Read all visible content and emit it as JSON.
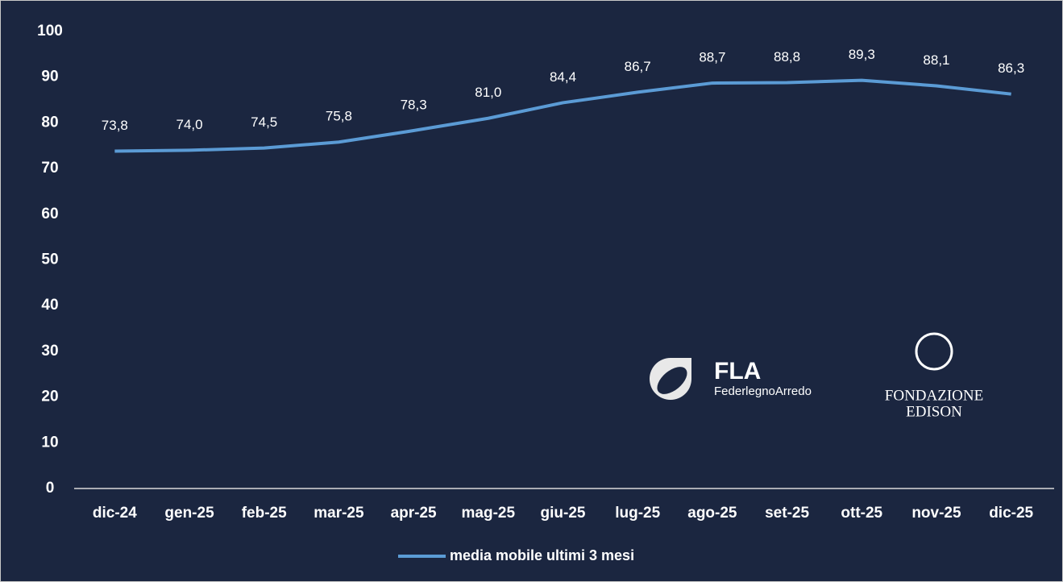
{
  "chart_data": {
    "type": "line",
    "categories": [
      "dic-24",
      "gen-25",
      "feb-25",
      "mar-25",
      "apr-25",
      "mag-25",
      "giu-25",
      "lug-25",
      "ago-25",
      "set-25",
      "ott-25",
      "nov-25",
      "dic-25"
    ],
    "series": [
      {
        "name": "media mobile ultimi 3 mesi",
        "color": "#5b9bd5",
        "values": [
          73.8,
          74.0,
          74.5,
          75.8,
          78.3,
          81.0,
          84.4,
          86.7,
          88.7,
          88.8,
          89.3,
          88.1,
          86.3
        ],
        "value_labels": [
          "73,8",
          "74,0",
          "74,5",
          "75,8",
          "78,3",
          "81,0",
          "84,4",
          "86,7",
          "88,7",
          "88,8",
          "89,3",
          "88,1",
          "86,3"
        ]
      }
    ],
    "ylim": [
      0,
      100
    ],
    "yticks": [
      0,
      10,
      20,
      30,
      40,
      50,
      60,
      70,
      80,
      90,
      100
    ],
    "legend": "bottom",
    "annotations": [
      "FLA",
      "FederlegnoArredo",
      "FONDAZIONE",
      "EDISON"
    ]
  }
}
